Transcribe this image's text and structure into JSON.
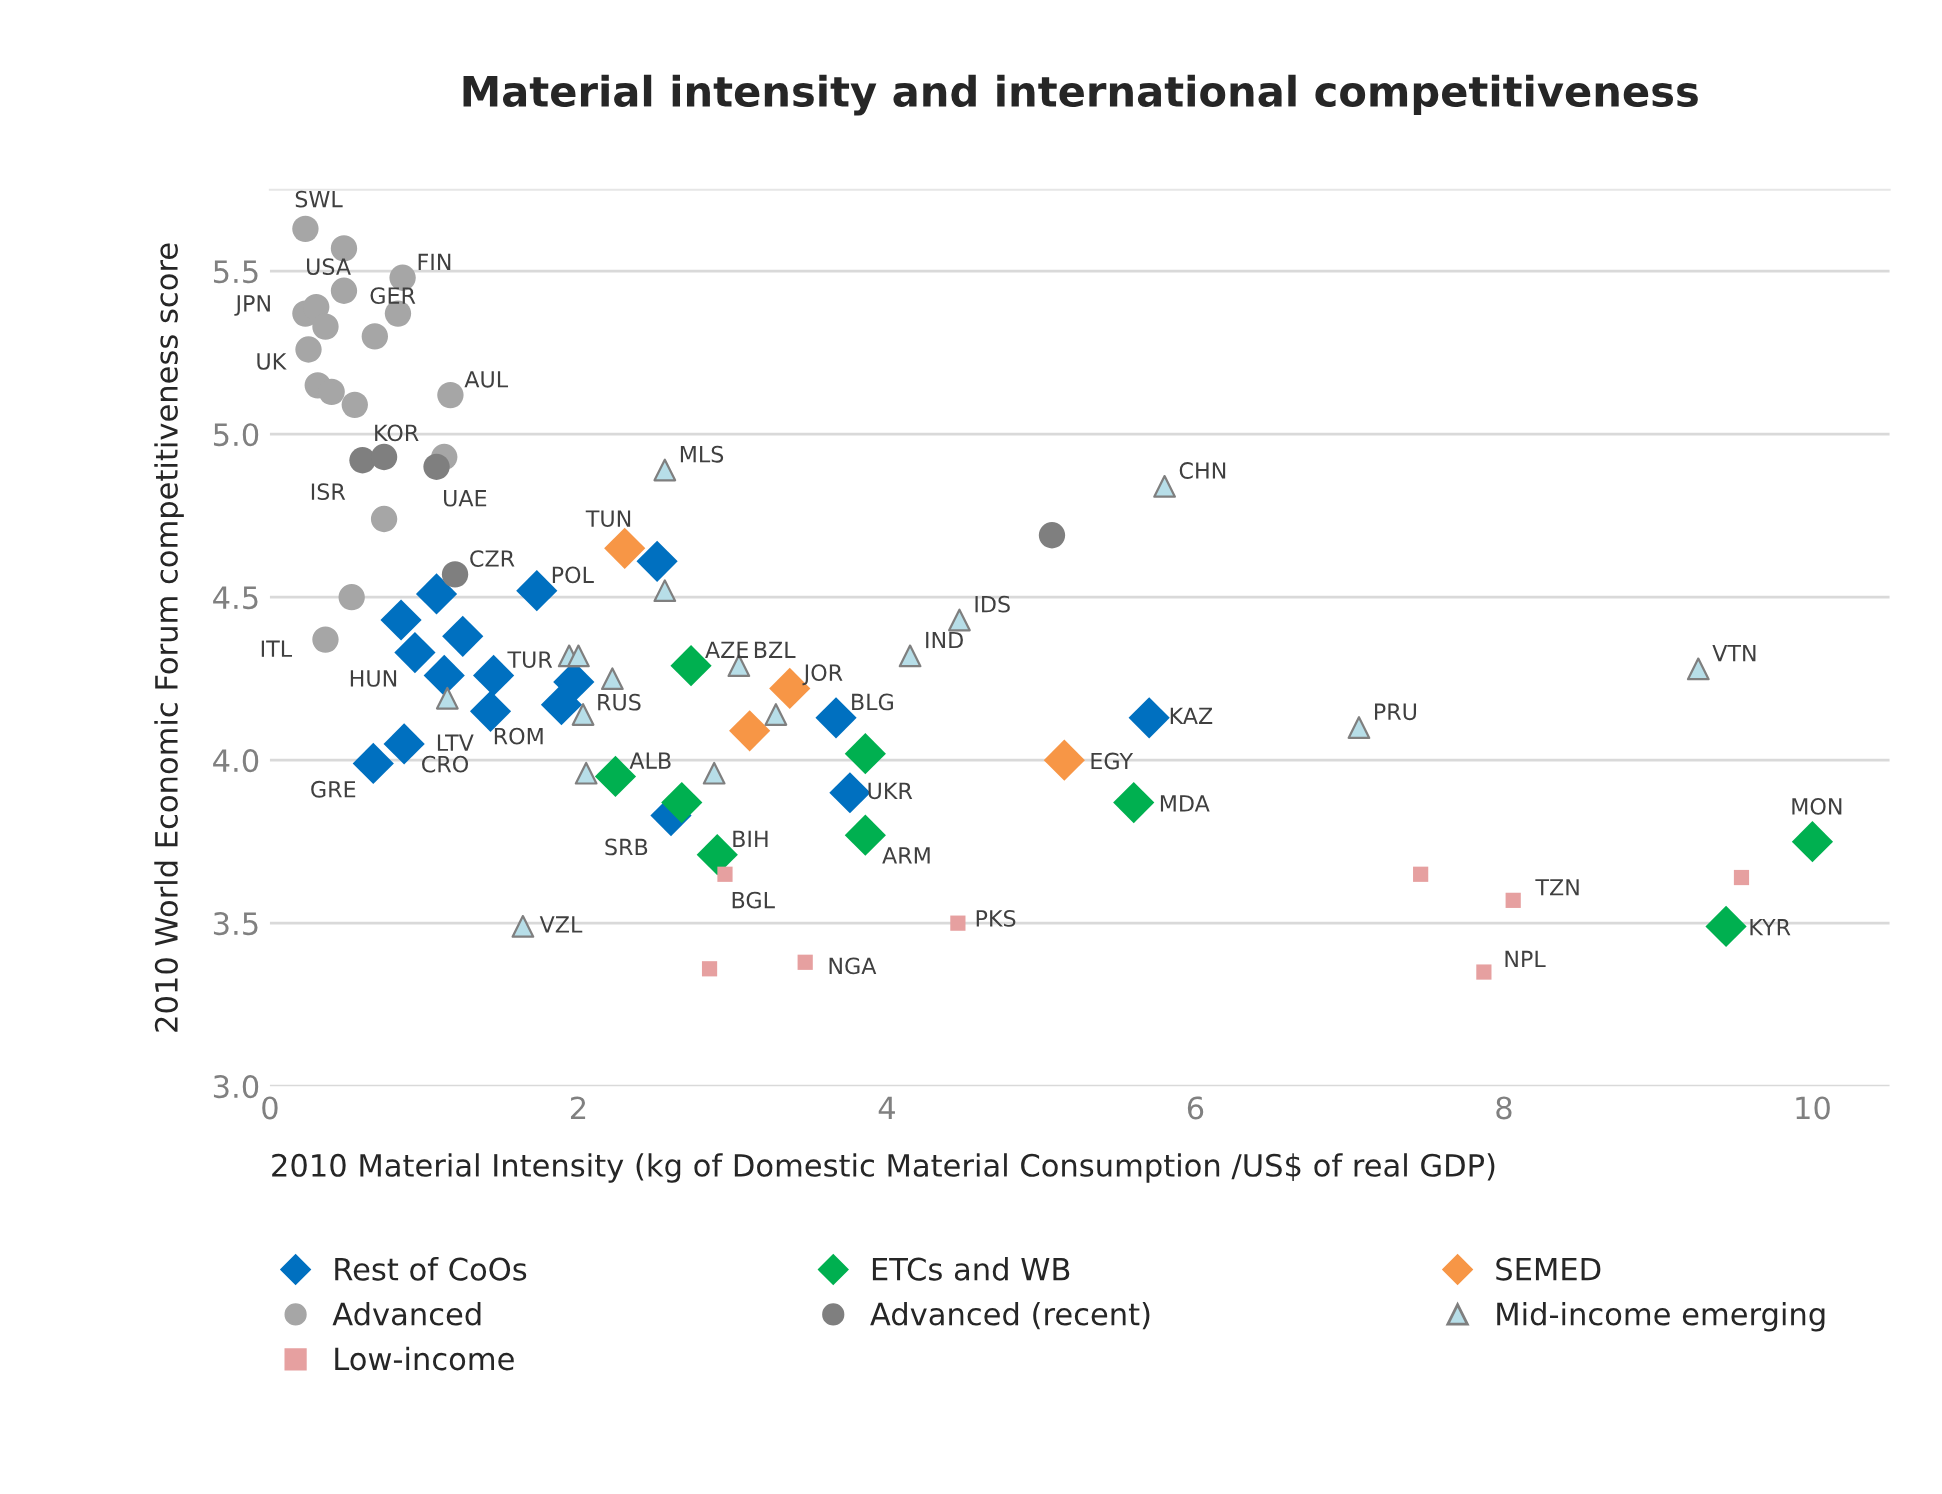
{
  "chart_data": {
    "type": "scatter",
    "title": "Material intensity and international competitiveness",
    "xlabel": "2010 Material Intensity (kg of Domestic Material Consumption /US$ of real GDP)",
    "ylabel": "2010 World Economic Forum competitiveness score",
    "xlim": [
      0,
      10.5
    ],
    "xticks": [
      0,
      2,
      4,
      6,
      8,
      10
    ],
    "ylim": [
      3.0,
      5.75
    ],
    "yticks": [
      {
        "value": 3.0,
        "label": "3.0"
      },
      {
        "value": 3.5,
        "label": "3.5"
      },
      {
        "value": 4.0,
        "label": "4.0"
      },
      {
        "value": 4.5,
        "label": "4.5"
      },
      {
        "value": 5.0,
        "label": "5.0"
      },
      {
        "value": 5.5,
        "label": "5.5"
      }
    ],
    "grid": "y",
    "legend": "bottom",
    "series": [
      {
        "name": "Rest of CoOs",
        "color": "#0070c0",
        "marker": "diamond",
        "x": [
          2.51,
          1.73,
          1.08,
          0.85,
          1.25,
          0.94,
          1.13,
          1.45,
          1.43,
          1.97,
          1.89,
          0.87,
          0.67,
          2.6,
          3.67,
          3.76,
          5.7
        ],
        "values": [
          4.61,
          4.52,
          4.51,
          4.43,
          4.38,
          4.33,
          4.26,
          4.26,
          4.15,
          4.24,
          4.17,
          4.05,
          3.99,
          3.83,
          4.13,
          3.9,
          4.13
        ]
      },
      {
        "name": "ETCs and WB",
        "color": "#00b050",
        "marker": "diamond",
        "x": [
          2.73,
          2.24,
          2.67,
          2.9,
          3.86,
          3.86,
          5.6,
          10.0,
          9.44
        ],
        "values": [
          4.29,
          3.95,
          3.87,
          3.71,
          4.02,
          3.77,
          3.87,
          3.75,
          3.49
        ]
      },
      {
        "name": "SEMED",
        "color": "#f79646",
        "marker": "diamond",
        "x": [
          2.3,
          3.37,
          3.11,
          5.15
        ],
        "values": [
          4.65,
          4.22,
          4.09,
          4.0
        ]
      },
      {
        "name": "Advanced",
        "color": "#a6a6a6",
        "marker": "circle",
        "x": [
          0.23,
          0.48,
          0.86,
          0.48,
          0.23,
          0.3,
          0.36,
          0.83,
          0.68,
          0.25,
          0.31,
          0.4,
          0.55,
          1.17,
          1.13,
          0.74,
          0.53,
          0.36
        ],
        "values": [
          5.63,
          5.57,
          5.48,
          5.44,
          5.37,
          5.39,
          5.33,
          5.37,
          5.3,
          5.26,
          5.15,
          5.13,
          5.09,
          5.12,
          4.93,
          4.74,
          4.5,
          4.37
        ]
      },
      {
        "name": "Advanced (recent)",
        "color": "#7f7f7f",
        "marker": "circle",
        "x": [
          0.6,
          0.74,
          1.08,
          1.2,
          5.07
        ],
        "values": [
          4.92,
          4.93,
          4.9,
          4.57,
          4.69
        ]
      },
      {
        "name": "Mid-income emerging",
        "color": "#b7dee8",
        "marker": "triangle",
        "x": [
          2.56,
          2.56,
          1.94,
          2.0,
          2.22,
          2.03,
          1.15,
          3.04,
          3.28,
          2.05,
          2.88,
          4.15,
          4.47,
          5.8,
          7.06,
          9.26,
          1.64
        ],
        "values": [
          4.89,
          4.52,
          4.32,
          4.32,
          4.25,
          4.14,
          4.19,
          4.29,
          4.14,
          3.96,
          3.96,
          4.32,
          4.43,
          4.84,
          4.1,
          4.28,
          3.49
        ]
      },
      {
        "name": "Low-income",
        "color": "#e6a0a0",
        "marker": "square",
        "x": [
          2.95,
          2.85,
          3.47,
          4.46,
          7.46,
          8.06,
          7.87,
          9.54
        ],
        "values": [
          3.65,
          3.36,
          3.38,
          3.5,
          3.65,
          3.57,
          3.35,
          3.64
        ]
      }
    ],
    "annotations": [
      {
        "text": "SWL",
        "x": 0.23,
        "y": 5.63
      },
      {
        "text": "USA",
        "x": 0.48,
        "y": 5.44
      },
      {
        "text": "FIN",
        "x": 0.86,
        "y": 5.48
      },
      {
        "text": "JPN",
        "x": 0.23,
        "y": 5.37
      },
      {
        "text": "GER",
        "x": 0.68,
        "y": 5.3
      },
      {
        "text": "UK",
        "x": 0.25,
        "y": 5.26
      },
      {
        "text": "AUL",
        "x": 1.17,
        "y": 5.12
      },
      {
        "text": "KOR",
        "x": 0.74,
        "y": 4.93
      },
      {
        "text": "ISR",
        "x": 0.6,
        "y": 4.92
      },
      {
        "text": "UAE",
        "x": 1.08,
        "y": 4.9
      },
      {
        "text": "CZR",
        "x": 1.2,
        "y": 4.57
      },
      {
        "text": "ITL",
        "x": 0.36,
        "y": 4.37
      },
      {
        "text": "POL",
        "x": 1.73,
        "y": 4.52
      },
      {
        "text": "HUN",
        "x": 0.94,
        "y": 4.33
      },
      {
        "text": "TUR",
        "x": 1.45,
        "y": 4.26
      },
      {
        "text": "LTV",
        "x": 1.43,
        "y": 4.15
      },
      {
        "text": "ROM",
        "x": 1.89,
        "y": 4.17
      },
      {
        "text": "RUS",
        "x": 1.97,
        "y": 4.24
      },
      {
        "text": "GRE",
        "x": 0.67,
        "y": 3.99
      },
      {
        "text": "CRO",
        "x": 0.87,
        "y": 4.05
      },
      {
        "text": "MLS",
        "x": 2.56,
        "y": 4.89
      },
      {
        "text": "TUN",
        "x": 2.3,
        "y": 4.65
      },
      {
        "text": "AZE",
        "x": 2.73,
        "y": 4.29
      },
      {
        "text": "BZL",
        "x": 3.04,
        "y": 4.29
      },
      {
        "text": "JOR",
        "x": 3.37,
        "y": 4.22
      },
      {
        "text": "ALB",
        "x": 2.24,
        "y": 3.95
      },
      {
        "text": "SRB",
        "x": 2.6,
        "y": 3.83
      },
      {
        "text": "BIH",
        "x": 2.9,
        "y": 3.71
      },
      {
        "text": "BGL",
        "x": 2.95,
        "y": 3.65
      },
      {
        "text": "BLG",
        "x": 3.67,
        "y": 4.13
      },
      {
        "text": "UKR",
        "x": 3.76,
        "y": 3.9
      },
      {
        "text": "ARM",
        "x": 3.86,
        "y": 3.77
      },
      {
        "text": "IND",
        "x": 4.15,
        "y": 4.32
      },
      {
        "text": "IDS",
        "x": 4.47,
        "y": 4.43
      },
      {
        "text": "CHN",
        "x": 5.8,
        "y": 4.84
      },
      {
        "text": "KAZ",
        "x": 5.7,
        "y": 4.13
      },
      {
        "text": "EGY",
        "x": 5.15,
        "y": 4.0
      },
      {
        "text": "MDA",
        "x": 5.6,
        "y": 3.87
      },
      {
        "text": "PRU",
        "x": 7.06,
        "y": 4.1
      },
      {
        "text": "VTN",
        "x": 9.26,
        "y": 4.28
      },
      {
        "text": "MON",
        "x": 10.0,
        "y": 3.75
      },
      {
        "text": "KYR",
        "x": 9.44,
        "y": 3.49
      },
      {
        "text": "TZN",
        "x": 8.06,
        "y": 3.57
      },
      {
        "text": "NPL",
        "x": 7.87,
        "y": 3.35
      },
      {
        "text": "PKS",
        "x": 4.46,
        "y": 3.5
      },
      {
        "text": "NGA",
        "x": 3.47,
        "y": 3.38
      },
      {
        "text": "VZL",
        "x": 1.64,
        "y": 3.49
      }
    ]
  }
}
